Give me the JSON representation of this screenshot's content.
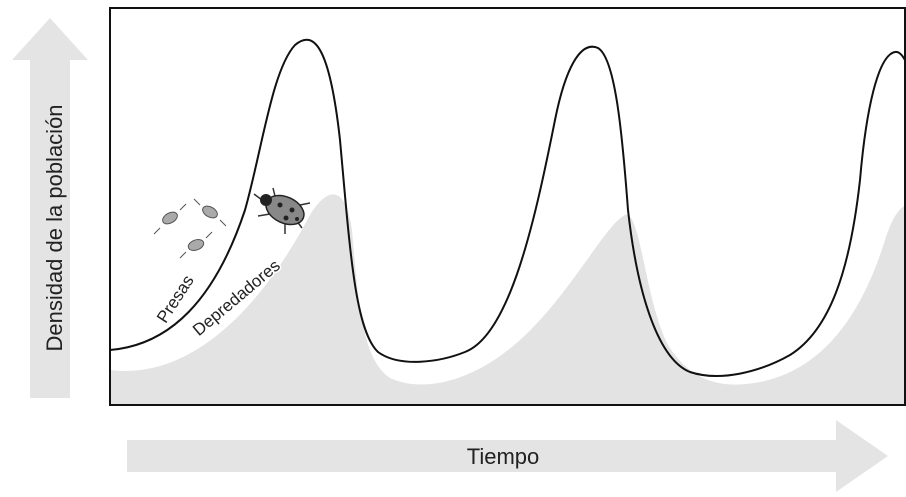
{
  "axes": {
    "y_label": "Densidad de la población",
    "x_label": "Tiempo"
  },
  "curves": [
    {
      "label": "Presas"
    },
    {
      "label": "Depredadores"
    }
  ]
}
